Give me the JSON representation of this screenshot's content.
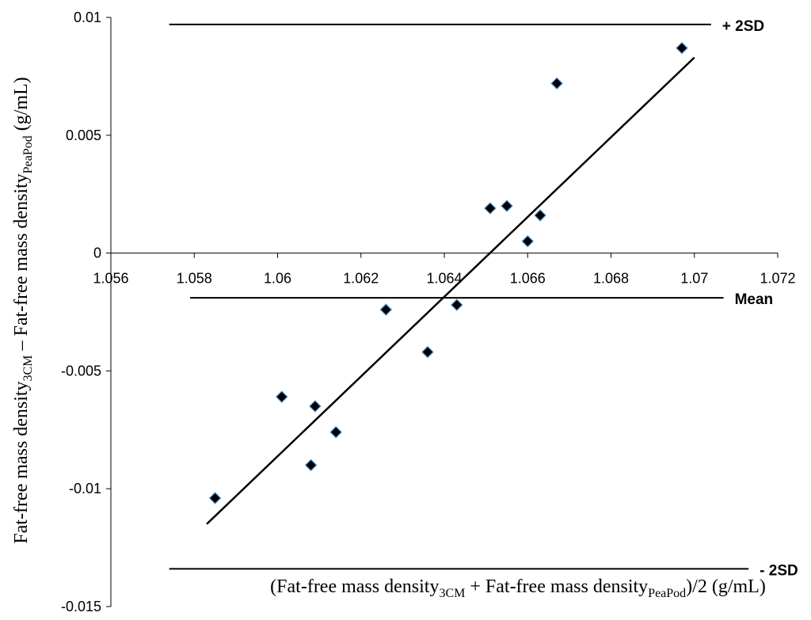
{
  "chart_data": {
    "type": "scatter",
    "title": "",
    "xlabel": {
      "parts": [
        "(Fat-free mass density",
        "3CM",
        " + Fat-free mass density",
        "PeaPod",
        ")/2 (g/mL)"
      ]
    },
    "ylabel": {
      "parts": [
        "Fat-free mass density",
        "3CM",
        " – Fat-free mass density",
        "PeaPod",
        " (g/mL)"
      ]
    },
    "xlim": [
      1.056,
      1.072
    ],
    "ylim": [
      -0.015,
      0.01
    ],
    "x_ticks": [
      "1.056",
      "1.058",
      "1.06",
      "1.062",
      "1.064",
      "1.066",
      "1.068",
      "1.07",
      "1.072"
    ],
    "y_ticks": [
      "0.01",
      "0.005",
      "0",
      "-0.005",
      "-0.01",
      "-0.015"
    ],
    "grid": false,
    "marker_color": "#000000",
    "marker_edge_color": "#5b9bd5",
    "points": [
      {
        "x": 1.0585,
        "y": -0.0104
      },
      {
        "x": 1.0601,
        "y": -0.0061
      },
      {
        "x": 1.0608,
        "y": -0.009
      },
      {
        "x": 1.0609,
        "y": -0.0065
      },
      {
        "x": 1.0614,
        "y": -0.0076
      },
      {
        "x": 1.0626,
        "y": -0.0024
      },
      {
        "x": 1.0636,
        "y": -0.0042
      },
      {
        "x": 1.0643,
        "y": -0.0022
      },
      {
        "x": 1.0651,
        "y": 0.0019
      },
      {
        "x": 1.0655,
        "y": 0.002
      },
      {
        "x": 1.066,
        "y": 0.0005
      },
      {
        "x": 1.0663,
        "y": 0.0016
      },
      {
        "x": 1.0667,
        "y": 0.0072
      },
      {
        "x": 1.0697,
        "y": 0.0087
      }
    ],
    "trendline": {
      "x": [
        1.0583,
        1.07
      ],
      "y": [
        -0.0115,
        0.0083
      ]
    },
    "reference_lines": [
      {
        "label": "+ 2SD",
        "y": 0.0097,
        "x_start": 1.0574,
        "x_end": 1.0704
      },
      {
        "label": "Mean",
        "y": -0.0019,
        "x_start": 1.0579,
        "x_end": 1.0707
      },
      {
        "label": "- 2SD",
        "y": -0.0134,
        "x_start": 1.0574,
        "x_end": 1.0713
      }
    ]
  }
}
